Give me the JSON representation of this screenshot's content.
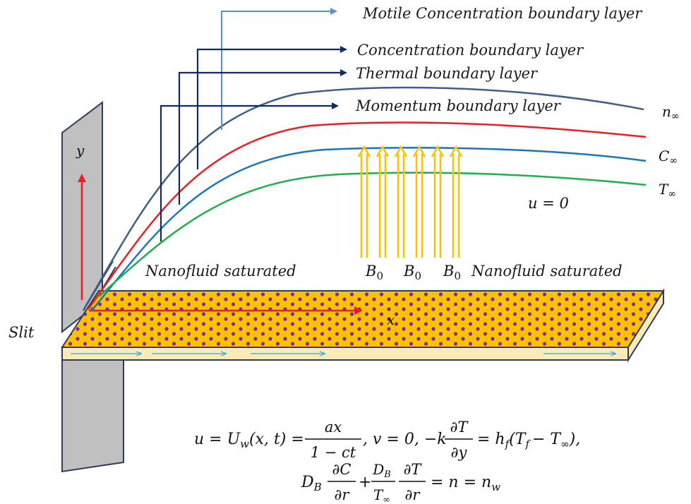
{
  "labels": {
    "motile": "Motile Concentration boundary layer",
    "concentration": "Concentration boundary layer",
    "thermal": "Thermal boundary layer",
    "momentum": "Momentum boundary layer",
    "n_inf": "n",
    "n_inf_sub": "∞",
    "c_inf": "C",
    "c_inf_sub": "∞",
    "t_inf": "T",
    "t_inf_sub": "∞",
    "u_zero": "u = 0",
    "y_axis": "y",
    "x_axis": "x",
    "slit": "Slit",
    "nano_left": "Nanofluid saturated",
    "nano_right": "Nanofluid saturated",
    "b0": "B",
    "b0_sub": "0"
  },
  "equations": {
    "line1_a": "u = U",
    "line1_a_sub": "w",
    "line1_b": "(x, t) =",
    "line1_frac_num": "ax",
    "line1_frac_den": "1 − ct",
    "line1_c": ", v = 0, −k",
    "line1_d_num": "∂T",
    "line1_d_den": "∂y",
    "line1_e": "= h",
    "line1_e_sub": "f",
    "line1_f": "(T",
    "line1_f_sub": "f",
    "line1_g": "− T",
    "line1_g_sub": "∞",
    "line1_h": "),",
    "line2_a": "D",
    "line2_a_sub": "B",
    "line2_b_num": "∂C",
    "line2_b_den": "∂r",
    "line2_plus": "+",
    "line2_c_num": "D",
    "line2_c_num_sub": "B",
    "line2_c_den": "T",
    "line2_c_den_sub": "∞",
    "line2_d_num": "∂T",
    "line2_d_den": "∂r",
    "line2_e": "= n = n",
    "line2_e_sub": "w"
  },
  "colors": {
    "motile_curve": "#3f5f86",
    "concentration_curve": "#ee1c24",
    "thermal_curve": "#1b75bc",
    "momentum_curve": "#1fae4b",
    "motile_arrow": "#5b8fd1",
    "dark_arrow": "#0f2a66",
    "plate": "#ffc000",
    "particle": "#7030a0",
    "wall": "#c0c0c0",
    "field_arrow": "#ffc000"
  }
}
